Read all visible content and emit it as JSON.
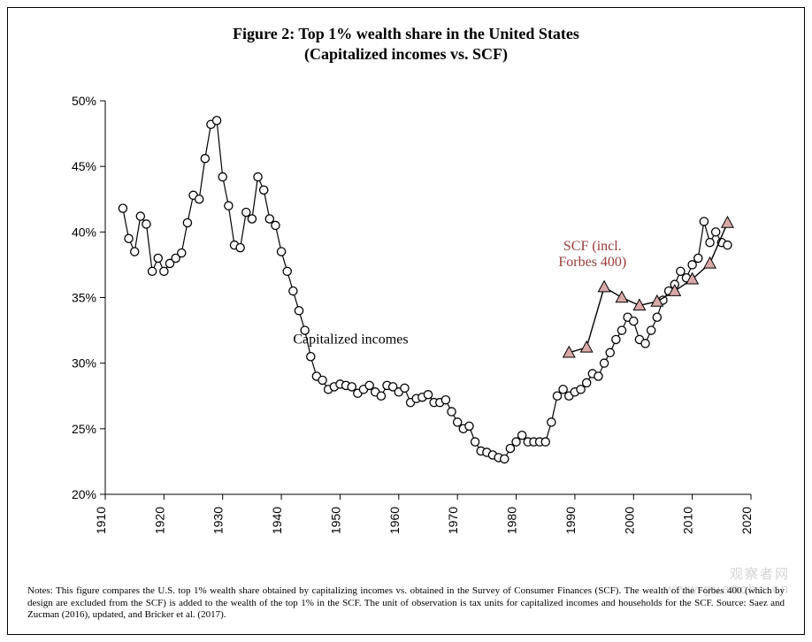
{
  "title_line1": "Figure 2: Top 1% wealth share in the United States",
  "title_line2": "(Capitalized incomes vs. SCF)",
  "notes_text": "Notes: This figure compares the U.S. top 1% wealth share obtained by capitalizing incomes vs. obtained in the Survey of Consumer Finances (SCF). The wealth of the Forbes 400 (which by design are excluded from the SCF) is added to the wealth of the top 1% in the SCF. The unit of observation is tax units for capitalized incomes and households for the SCF. Source: Saez and Zucman (2016), updated, and Bricker et al. (2017).",
  "watermark_text1": "观察者网",
  "watermark_text2": "www.guancha.cn",
  "chart": {
    "type": "line-scatter",
    "background_color": "#ffffff",
    "axis_color": "#000000",
    "tick_length": 6,
    "x_axis": {
      "min": 1910,
      "max": 2020,
      "ticks": [
        1910,
        1920,
        1930,
        1940,
        1950,
        1960,
        1970,
        1980,
        1990,
        2000,
        2010,
        2020
      ],
      "label_rotation": -90,
      "label_fontsize": 14,
      "label_font": "Arial"
    },
    "y_axis": {
      "min": 20,
      "max": 50,
      "ticks": [
        20,
        25,
        30,
        35,
        40,
        45,
        50
      ],
      "tick_format_suffix": "%",
      "label_fontsize": 14,
      "label_font": "Arial"
    },
    "series_capitalized": {
      "label_text": "Capitalized incomes",
      "label_color": "#000000",
      "label_fontsize": 16,
      "label_pos_year": 1942,
      "label_pos_value": 31.5,
      "line_color": "#000000",
      "line_width": 1.2,
      "marker_shape": "circle",
      "marker_size": 4.6,
      "marker_fill": "#ffffff",
      "marker_stroke": "#000000",
      "marker_stroke_width": 1.3,
      "points": [
        [
          1913,
          41.8
        ],
        [
          1914,
          39.5
        ],
        [
          1915,
          38.5
        ],
        [
          1916,
          41.2
        ],
        [
          1917,
          40.6
        ],
        [
          1918,
          37.0
        ],
        [
          1919,
          38.0
        ],
        [
          1920,
          37.0
        ],
        [
          1921,
          37.6
        ],
        [
          1922,
          38.0
        ],
        [
          1923,
          38.4
        ],
        [
          1924,
          40.7
        ],
        [
          1925,
          42.8
        ],
        [
          1926,
          42.5
        ],
        [
          1927,
          45.6
        ],
        [
          1928,
          48.2
        ],
        [
          1929,
          48.5
        ],
        [
          1930,
          44.2
        ],
        [
          1931,
          42.0
        ],
        [
          1932,
          39.0
        ],
        [
          1933,
          38.8
        ],
        [
          1934,
          41.5
        ],
        [
          1935,
          41.0
        ],
        [
          1936,
          44.2
        ],
        [
          1937,
          43.2
        ],
        [
          1938,
          41.0
        ],
        [
          1939,
          40.5
        ],
        [
          1940,
          38.5
        ],
        [
          1941,
          37.0
        ],
        [
          1942,
          35.5
        ],
        [
          1943,
          34.0
        ],
        [
          1944,
          32.5
        ],
        [
          1945,
          30.5
        ],
        [
          1946,
          29.0
        ],
        [
          1947,
          28.7
        ],
        [
          1948,
          28.0
        ],
        [
          1949,
          28.2
        ],
        [
          1950,
          28.4
        ],
        [
          1951,
          28.3
        ],
        [
          1952,
          28.2
        ],
        [
          1953,
          27.7
        ],
        [
          1954,
          28.0
        ],
        [
          1955,
          28.3
        ],
        [
          1956,
          27.8
        ],
        [
          1957,
          27.5
        ],
        [
          1958,
          28.3
        ],
        [
          1959,
          28.2
        ],
        [
          1960,
          27.8
        ],
        [
          1961,
          28.1
        ],
        [
          1962,
          27.0
        ],
        [
          1963,
          27.3
        ],
        [
          1964,
          27.4
        ],
        [
          1965,
          27.6
        ],
        [
          1966,
          27.0
        ],
        [
          1967,
          27.0
        ],
        [
          1968,
          27.2
        ],
        [
          1969,
          26.3
        ],
        [
          1970,
          25.5
        ],
        [
          1971,
          25.0
        ],
        [
          1972,
          25.2
        ],
        [
          1973,
          24.0
        ],
        [
          1974,
          23.3
        ],
        [
          1975,
          23.2
        ],
        [
          1976,
          23.0
        ],
        [
          1977,
          22.8
        ],
        [
          1978,
          22.7
        ],
        [
          1979,
          23.5
        ],
        [
          1980,
          24.0
        ],
        [
          1981,
          24.5
        ],
        [
          1982,
          24.0
        ],
        [
          1983,
          24.0
        ],
        [
          1984,
          24.0
        ],
        [
          1985,
          24.0
        ],
        [
          1986,
          25.5
        ],
        [
          1987,
          27.5
        ],
        [
          1988,
          28.0
        ],
        [
          1989,
          27.5
        ],
        [
          1990,
          27.8
        ],
        [
          1991,
          28.0
        ],
        [
          1992,
          28.5
        ],
        [
          1993,
          29.2
        ],
        [
          1994,
          29.0
        ],
        [
          1995,
          30.0
        ],
        [
          1996,
          30.8
        ],
        [
          1997,
          31.8
        ],
        [
          1998,
          32.5
        ],
        [
          1999,
          33.5
        ],
        [
          2000,
          33.2
        ],
        [
          2001,
          31.8
        ],
        [
          2002,
          31.5
        ],
        [
          2003,
          32.5
        ],
        [
          2004,
          33.5
        ],
        [
          2005,
          34.8
        ],
        [
          2006,
          35.5
        ],
        [
          2007,
          36.0
        ],
        [
          2008,
          37.0
        ],
        [
          2009,
          36.5
        ],
        [
          2010,
          37.5
        ],
        [
          2011,
          38.0
        ],
        [
          2012,
          40.8
        ],
        [
          2013,
          39.2
        ],
        [
          2014,
          40.0
        ],
        [
          2015,
          39.2
        ],
        [
          2016,
          39.0
        ]
      ]
    },
    "series_scf": {
      "label_text1": "SCF (incl.",
      "label_text2": "Forbes 400)",
      "label_color": "#9a3b3b",
      "label_fontsize": 16,
      "label_pos_year": 1993,
      "label_pos_value": 38.6,
      "line_color": "#000000",
      "line_width": 1.4,
      "marker_shape": "triangle",
      "marker_size": 7,
      "marker_fill": "#d9a8a8",
      "marker_stroke": "#000000",
      "marker_stroke_width": 1.0,
      "points": [
        [
          1989,
          30.8
        ],
        [
          1992,
          31.2
        ],
        [
          1995,
          35.8
        ],
        [
          1998,
          35.0
        ],
        [
          2001,
          34.4
        ],
        [
          2004,
          34.7
        ],
        [
          2007,
          35.5
        ],
        [
          2010,
          36.4
        ],
        [
          2013,
          37.6
        ],
        [
          2016,
          40.7
        ]
      ]
    }
  }
}
